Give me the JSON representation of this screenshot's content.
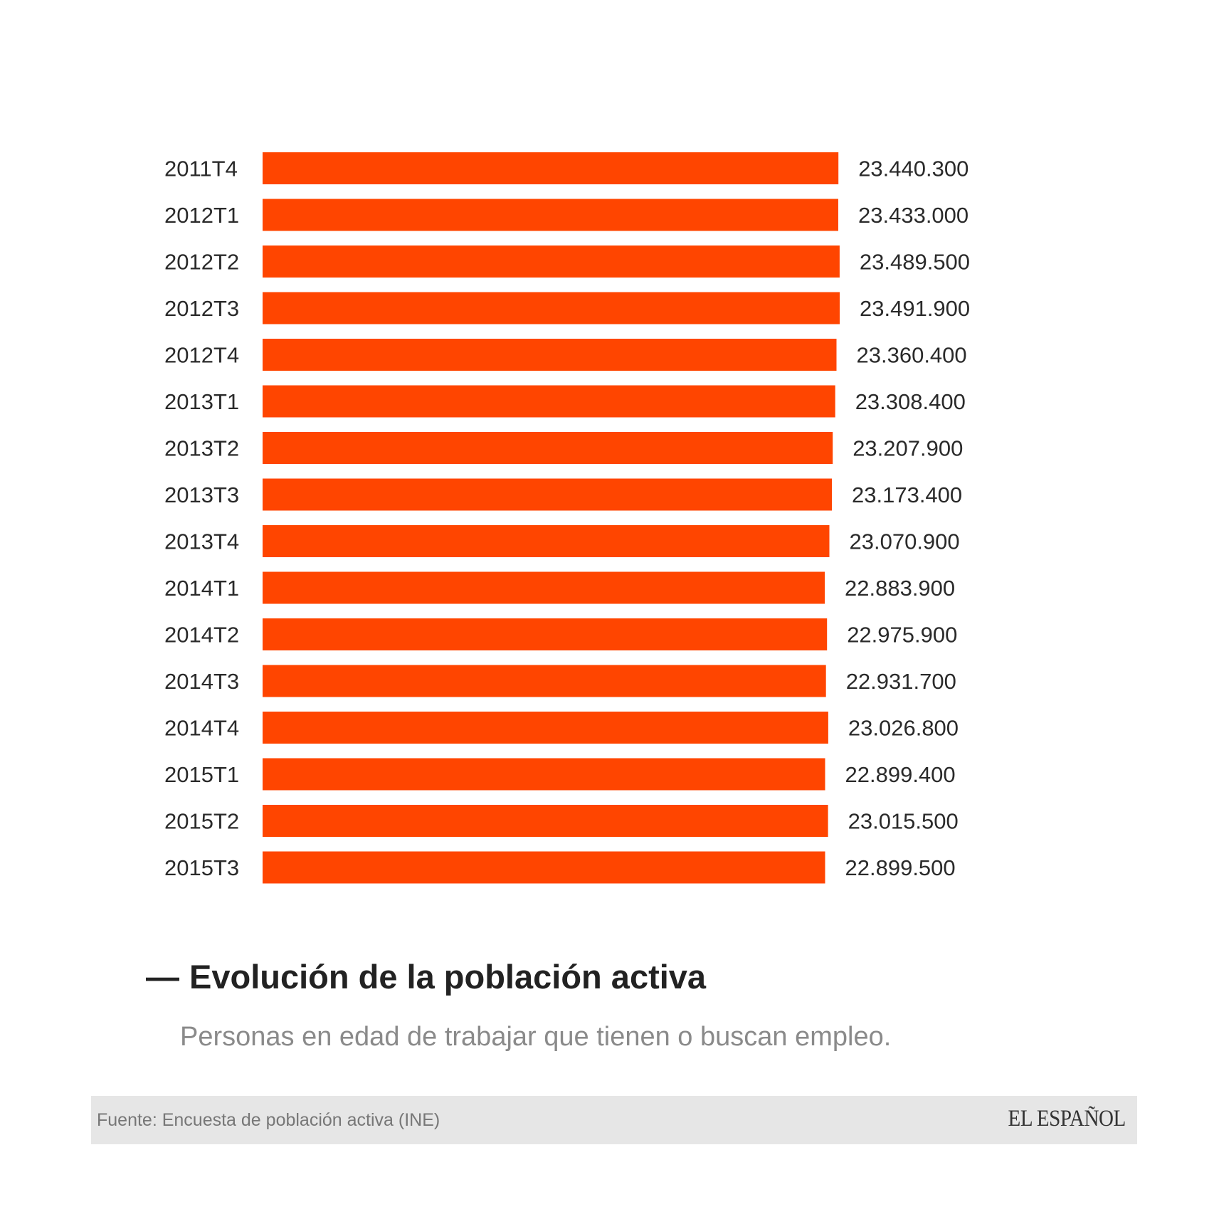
{
  "chart_data": {
    "type": "bar",
    "orientation": "horizontal",
    "title": "Evolución de la población activa",
    "subtitle": "Personas en edad de trabajar que tienen o buscan empleo.",
    "source": "Fuente: Encuesta de población activa (INE)",
    "brand": "EL ESPAÑOL",
    "bar_color": "#ff4500",
    "categories": [
      "2011T4",
      "2012T1",
      "2012T2",
      "2012T3",
      "2012T4",
      "2013T1",
      "2013T2",
      "2013T3",
      "2013T4",
      "2014T1",
      "2014T2",
      "2014T3",
      "2014T4",
      "2015T1",
      "2015T2",
      "2015T3"
    ],
    "values": [
      23440300,
      23433000,
      23489500,
      23491900,
      23360400,
      23308400,
      23207900,
      23173400,
      23070900,
      22883900,
      22975900,
      22931700,
      23026800,
      22899400,
      23015500,
      22899500
    ],
    "value_labels": [
      "23.440.300",
      "23.433.000",
      "23.489.500",
      "23.491.900",
      "23.360.400",
      "23.308.400",
      "23.207.900",
      "23.173.400",
      "23.070.900",
      "22.883.900",
      "22.975.900",
      "22.931.700",
      "23.026.800",
      "22.899.400",
      "23.015.500",
      "22.899.500"
    ],
    "xlim": [
      0,
      23491900
    ],
    "grid": false,
    "legend": "none"
  }
}
